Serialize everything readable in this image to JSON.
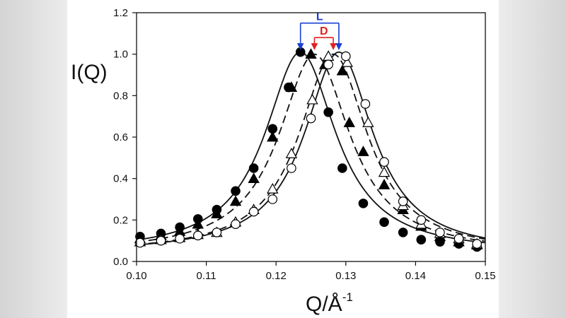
{
  "chart_data": {
    "type": "scatter",
    "title": "",
    "xlabel": "Q/Å",
    "xlabel_superscript": "-1",
    "ylabel": "I(Q)",
    "xlim": [
      0.1,
      0.15
    ],
    "ylim": [
      0.0,
      1.2
    ],
    "x_ticks": [
      0.1,
      0.11,
      0.12,
      0.13,
      0.14,
      0.15
    ],
    "x_tick_labels": [
      "0.10",
      "0.11",
      "0.12",
      "0.13",
      "0.14",
      "0.15"
    ],
    "y_ticks": [
      0.0,
      0.2,
      0.4,
      0.6,
      0.8,
      1.0,
      1.2
    ],
    "y_tick_labels": [
      "0.0",
      "0.2",
      "0.4",
      "0.6",
      "0.8",
      "1.0",
      "1.2"
    ],
    "grid": false,
    "series": [
      {
        "name": "filled-circles",
        "marker": "circle",
        "filled": true,
        "points": [
          [
            0.1005,
            0.12
          ],
          [
            0.1035,
            0.135
          ],
          [
            0.1062,
            0.165
          ],
          [
            0.1088,
            0.205
          ],
          [
            0.1115,
            0.25
          ],
          [
            0.1142,
            0.34
          ],
          [
            0.1168,
            0.45
          ],
          [
            0.1195,
            0.64
          ],
          [
            0.1218,
            0.84
          ],
          [
            0.1235,
            1.01
          ],
          [
            0.1275,
            0.72
          ],
          [
            0.1295,
            0.45
          ],
          [
            0.1325,
            0.28
          ],
          [
            0.1355,
            0.19
          ],
          [
            0.1382,
            0.14
          ],
          [
            0.1408,
            0.105
          ],
          [
            0.1435,
            0.095
          ],
          [
            0.1462,
            0.085
          ],
          [
            0.1488,
            0.07
          ]
        ]
      },
      {
        "name": "filled-triangles",
        "marker": "triangle",
        "filled": true,
        "points": [
          [
            0.1005,
            0.11
          ],
          [
            0.1035,
            0.125
          ],
          [
            0.1062,
            0.145
          ],
          [
            0.1088,
            0.18
          ],
          [
            0.1115,
            0.23
          ],
          [
            0.1142,
            0.29
          ],
          [
            0.1168,
            0.4
          ],
          [
            0.1195,
            0.6
          ],
          [
            0.1222,
            0.84
          ],
          [
            0.125,
            1.0
          ],
          [
            0.127,
            0.95
          ],
          [
            0.1295,
            0.92
          ],
          [
            0.1305,
            0.67
          ],
          [
            0.1325,
            0.53
          ],
          [
            0.1355,
            0.37
          ],
          [
            0.1382,
            0.25
          ],
          [
            0.1408,
            0.17
          ],
          [
            0.1435,
            0.12
          ],
          [
            0.1462,
            0.095
          ],
          [
            0.1488,
            0.08
          ]
        ]
      },
      {
        "name": "open-triangles",
        "marker": "triangle",
        "filled": false,
        "points": [
          [
            0.1005,
            0.095
          ],
          [
            0.1035,
            0.105
          ],
          [
            0.1062,
            0.115
          ],
          [
            0.1088,
            0.13
          ],
          [
            0.1115,
            0.14
          ],
          [
            0.1142,
            0.19
          ],
          [
            0.1168,
            0.25
          ],
          [
            0.1195,
            0.35
          ],
          [
            0.1222,
            0.52
          ],
          [
            0.1252,
            0.78
          ],
          [
            0.1275,
            0.99
          ],
          [
            0.1302,
            0.96
          ],
          [
            0.1332,
            0.67
          ],
          [
            0.1355,
            0.43
          ],
          [
            0.1382,
            0.27
          ],
          [
            0.1408,
            0.18
          ],
          [
            0.1435,
            0.135
          ],
          [
            0.1462,
            0.11
          ],
          [
            0.1488,
            0.085
          ]
        ]
      },
      {
        "name": "open-circles",
        "marker": "circle",
        "filled": false,
        "points": [
          [
            0.1005,
            0.09
          ],
          [
            0.1035,
            0.1
          ],
          [
            0.1062,
            0.11
          ],
          [
            0.1088,
            0.125
          ],
          [
            0.1115,
            0.14
          ],
          [
            0.1142,
            0.18
          ],
          [
            0.1168,
            0.24
          ],
          [
            0.1195,
            0.3
          ],
          [
            0.1222,
            0.45
          ],
          [
            0.125,
            0.69
          ],
          [
            0.1275,
            0.95
          ],
          [
            0.13,
            0.99
          ],
          [
            0.1328,
            0.76
          ],
          [
            0.1355,
            0.48
          ],
          [
            0.1382,
            0.29
          ],
          [
            0.1408,
            0.2
          ],
          [
            0.1435,
            0.14
          ],
          [
            0.1462,
            0.11
          ],
          [
            0.1488,
            0.085
          ]
        ]
      }
    ],
    "fits": [
      {
        "name": "fit-filled-circles",
        "style": "solid",
        "peak_x": 0.1235,
        "peak_y": 1.01,
        "hwhm": 0.0062,
        "baseline": 0.04
      },
      {
        "name": "fit-filled-triangles",
        "style": "dashed",
        "peak_x": 0.1255,
        "peak_y": 1.0,
        "hwhm": 0.0062,
        "baseline": 0.04
      },
      {
        "name": "fit-open-triangles",
        "style": "dashed",
        "peak_x": 0.1282,
        "peak_y": 1.0,
        "hwhm": 0.006,
        "baseline": 0.04
      },
      {
        "name": "fit-open-circles",
        "style": "solid",
        "peak_x": 0.129,
        "peak_y": 1.01,
        "hwhm": 0.006,
        "baseline": 0.04
      }
    ],
    "annotations": [
      {
        "name": "L",
        "label": "L",
        "color": "#1a3fd6",
        "x_start": 0.1235,
        "x_end": 0.129,
        "bracket_y": 1.15,
        "arrow_to_y": 1.02
      },
      {
        "name": "D",
        "label": "D",
        "color": "#e02020",
        "x_start": 0.1255,
        "x_end": 0.1282,
        "bracket_y": 1.08,
        "arrow_to_y": 1.02
      }
    ]
  }
}
